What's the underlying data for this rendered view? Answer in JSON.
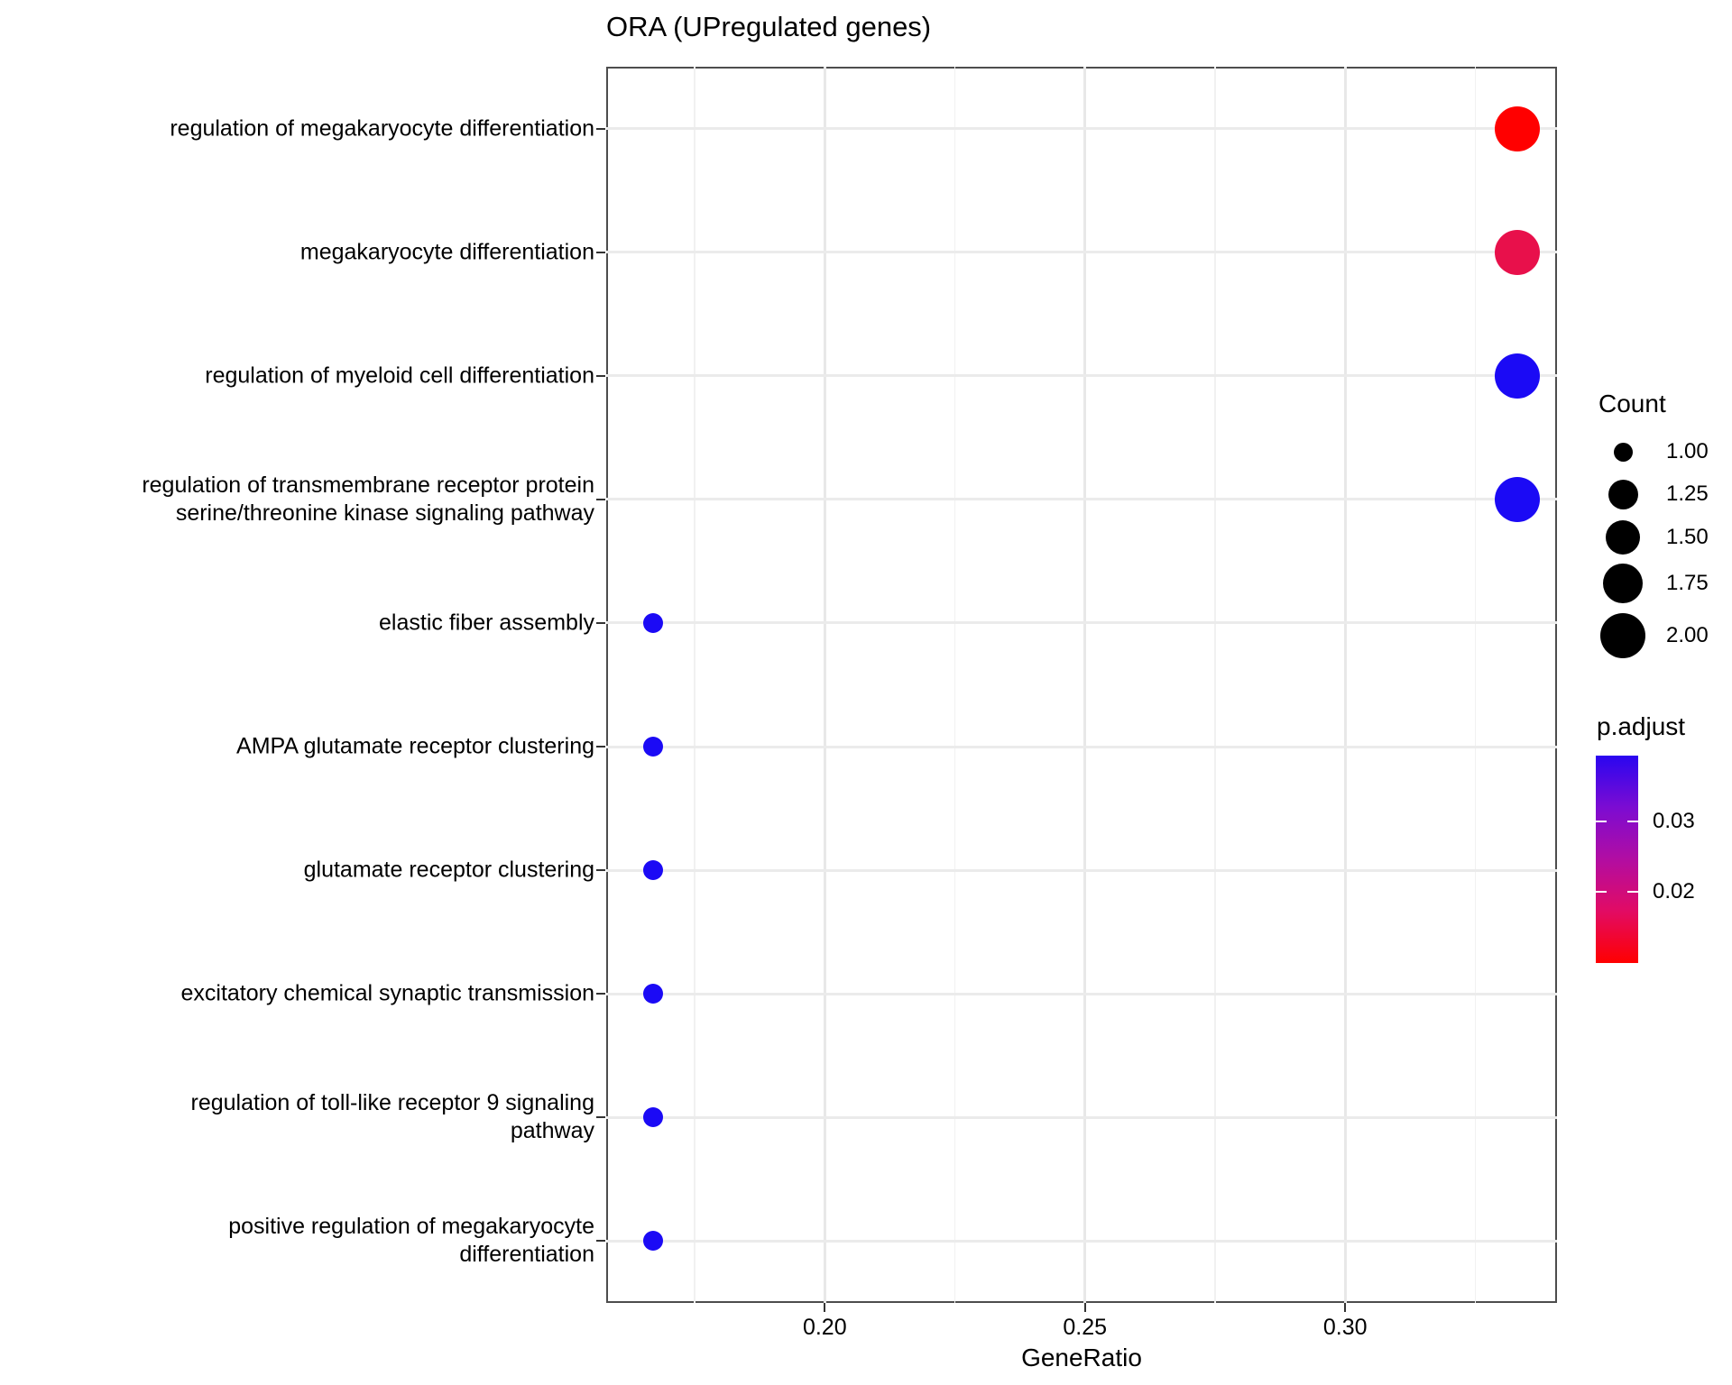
{
  "page_title": "ORA (UPregulated genes)",
  "chart_data": {
    "type": "scatter",
    "title": "ORA (UPregulated genes)",
    "xlabel": "GeneRatio",
    "ylabel": "",
    "grid": true,
    "xlim": [
      0.158,
      0.3407
    ],
    "x_tick_labels": [
      "0.20",
      "0.25",
      "0.30"
    ],
    "x_tick_values": [
      0.2,
      0.25,
      0.3
    ],
    "x_minor_gridlines": [
      0.175,
      0.225,
      0.275,
      0.325
    ],
    "points": [
      {
        "category": "regulation of megakaryocyte differentiation",
        "label_lines": [
          "regulation of megakaryocyte differentiation"
        ],
        "gene_ratio": 0.333,
        "count": 2,
        "p_adjust": 0.01,
        "color": "#FF0000"
      },
      {
        "category": "megakaryocyte differentiation",
        "label_lines": [
          "megakaryocyte differentiation"
        ],
        "gene_ratio": 0.333,
        "count": 2,
        "p_adjust": 0.016,
        "color": "#E8104B"
      },
      {
        "category": "regulation of myeloid cell differentiation",
        "label_lines": [
          "regulation of myeloid cell differentiation"
        ],
        "gene_ratio": 0.333,
        "count": 2,
        "p_adjust": 0.039,
        "color": "#1B0AF5"
      },
      {
        "category": "regulation of transmembrane receptor protein serine/threonine kinase signaling pathway",
        "label_lines": [
          "regulation of transmembrane receptor protein",
          "serine/threonine kinase signaling pathway"
        ],
        "gene_ratio": 0.333,
        "count": 2,
        "p_adjust": 0.039,
        "color": "#1B0AF5"
      },
      {
        "category": "elastic fiber assembly",
        "label_lines": [
          "elastic fiber assembly"
        ],
        "gene_ratio": 0.167,
        "count": 1,
        "p_adjust": 0.039,
        "color": "#1B0AF5"
      },
      {
        "category": "AMPA glutamate receptor clustering",
        "label_lines": [
          "AMPA glutamate receptor clustering"
        ],
        "gene_ratio": 0.167,
        "count": 1,
        "p_adjust": 0.039,
        "color": "#1B0AF5"
      },
      {
        "category": "glutamate receptor clustering",
        "label_lines": [
          "glutamate receptor clustering"
        ],
        "gene_ratio": 0.167,
        "count": 1,
        "p_adjust": 0.039,
        "color": "#1B0AF5"
      },
      {
        "category": "excitatory chemical synaptic transmission",
        "label_lines": [
          "excitatory chemical synaptic transmission"
        ],
        "gene_ratio": 0.167,
        "count": 1,
        "p_adjust": 0.039,
        "color": "#1B0AF5"
      },
      {
        "category": "regulation of toll-like receptor 9 signaling pathway",
        "label_lines": [
          "regulation of toll-like receptor 9 signaling",
          "pathway"
        ],
        "gene_ratio": 0.167,
        "count": 1,
        "p_adjust": 0.039,
        "color": "#1B0AF5"
      },
      {
        "category": "positive regulation of megakaryocyte differentiation",
        "label_lines": [
          "positive regulation of megakaryocyte",
          "differentiation"
        ],
        "gene_ratio": 0.167,
        "count": 1,
        "p_adjust": 0.039,
        "color": "#1B0AF5"
      }
    ],
    "legend_count": {
      "title": "Count",
      "entries": [
        {
          "label": "1.00",
          "value": 1.0
        },
        {
          "label": "1.25",
          "value": 1.25
        },
        {
          "label": "1.50",
          "value": 1.5
        },
        {
          "label": "1.75",
          "value": 1.75
        },
        {
          "label": "2.00",
          "value": 2.0
        }
      ]
    },
    "legend_padjust": {
      "title": "p.adjust",
      "tick_labels": [
        "0.03",
        "0.02"
      ],
      "tick_values": [
        0.03,
        0.02
      ],
      "value_range": [
        0.0099,
        0.0394
      ],
      "gradient_top_color": "#2A06F0",
      "gradient_bottom_color": "#FF0000",
      "gradient_stops": [
        "#2A06F0",
        "#7C0CD2",
        "#B20DA2",
        "#E20B64",
        "#FF0000"
      ]
    }
  }
}
